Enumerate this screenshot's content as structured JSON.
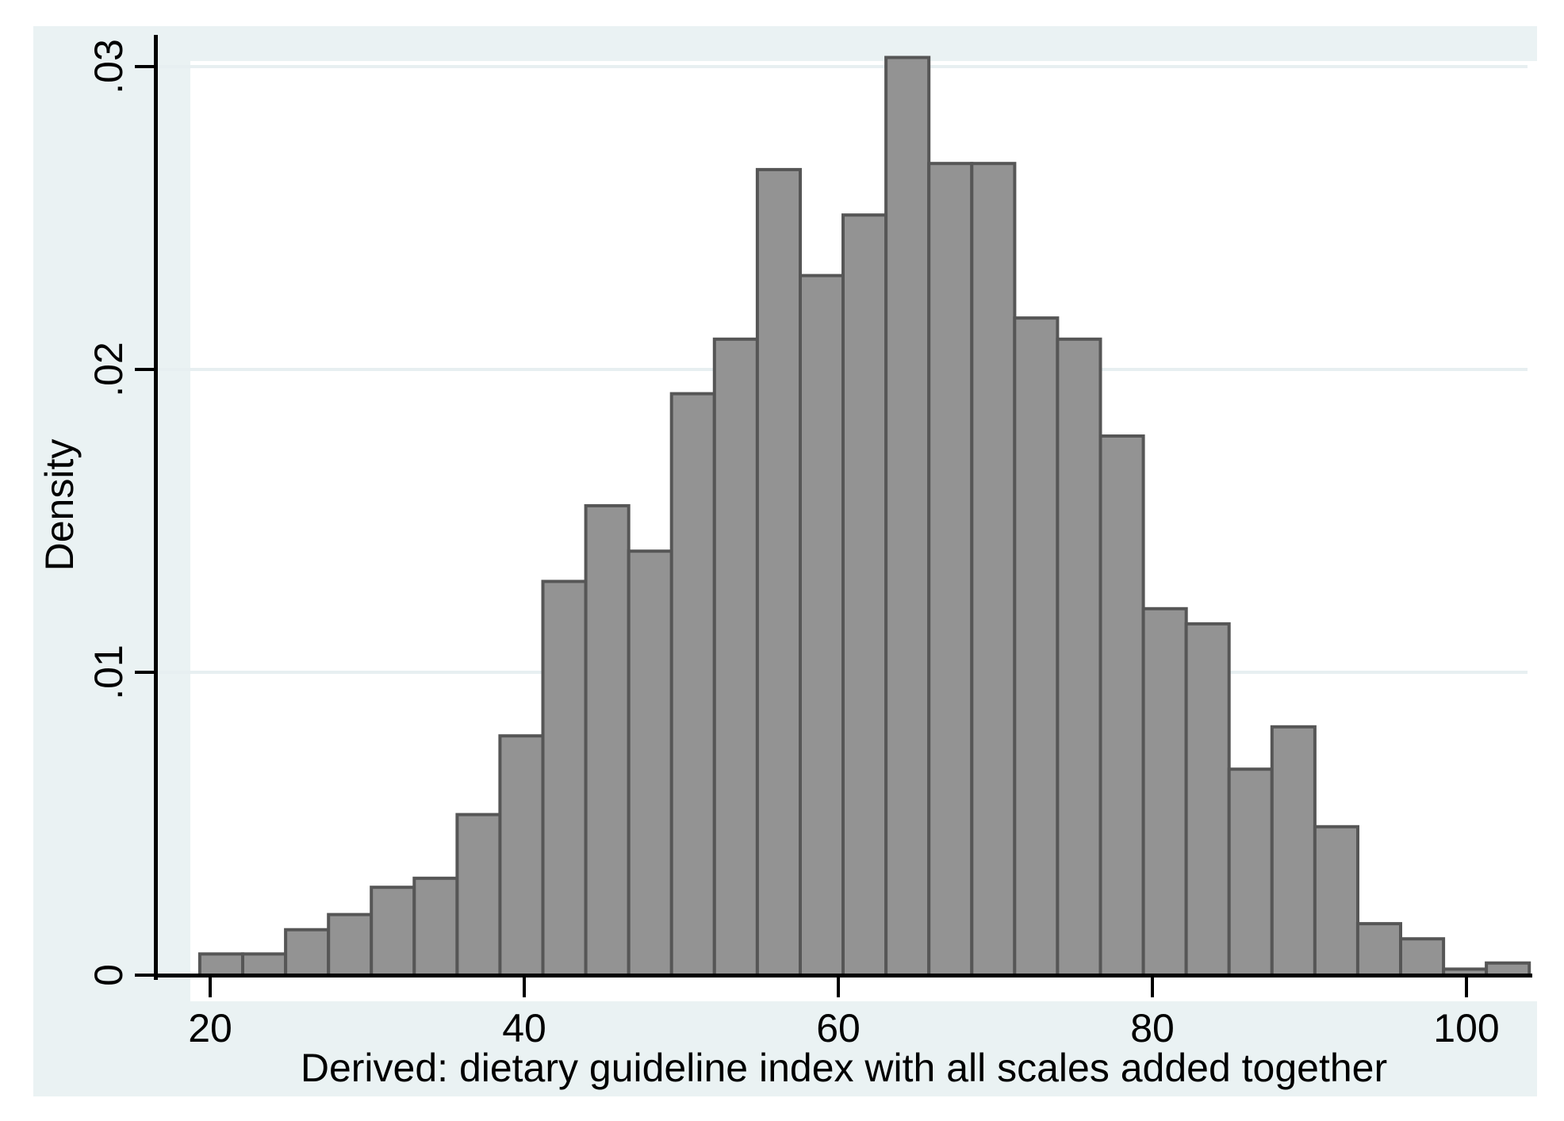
{
  "chart_data": {
    "type": "bar",
    "subtype": "histogram",
    "title": "",
    "xlabel": "Derived: dietary guideline index with all scales added together",
    "ylabel": "Density",
    "x_ticks": [
      20,
      40,
      60,
      80,
      100
    ],
    "y_ticks": [
      {
        "value": 0,
        "label": "0"
      },
      {
        "value": 0.01,
        "label": ".01"
      },
      {
        "value": 0.02,
        "label": ".02"
      },
      {
        "value": 0.03,
        "label": ".03"
      }
    ],
    "xlim": [
      16.6,
      104.1
    ],
    "ylim": [
      0,
      0.031
    ],
    "bin_start": 19.34,
    "bin_width": 2.731,
    "densities": [
      0.0007,
      0.0007,
      0.0015,
      0.002,
      0.0029,
      0.0032,
      0.0053,
      0.0079,
      0.013,
      0.0155,
      0.014,
      0.0192,
      0.021,
      0.0266,
      0.0231,
      0.0251,
      0.0303,
      0.0268,
      0.0268,
      0.0217,
      0.021,
      0.0178,
      0.0121,
      0.0116,
      0.0068,
      0.0082,
      0.0049,
      0.0017,
      0.0012,
      0.0002,
      0.0004
    ],
    "grid": "horizontal-only",
    "legend": "none",
    "colors": {
      "bar_fill": "#939393",
      "bar_border": "#565656",
      "plot_background": "#ffffff",
      "figure_background": "#eaf2f3",
      "outer_background": "#ffffff",
      "gridline": "#e7eff1",
      "axis": "#000000",
      "text": "#000000"
    }
  }
}
